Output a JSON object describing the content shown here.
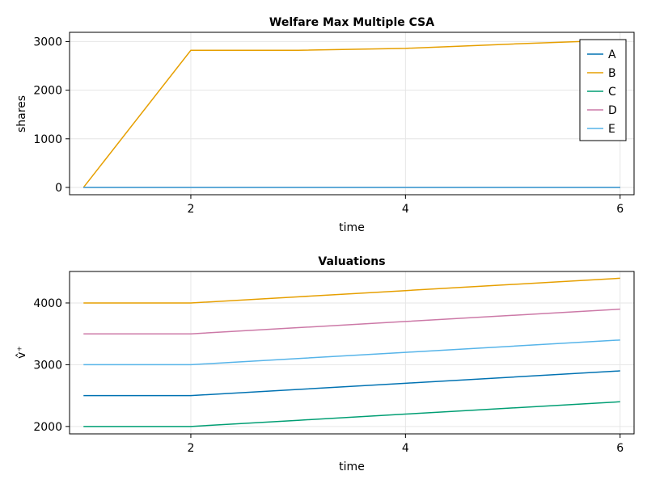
{
  "chart_data": [
    {
      "type": "line",
      "title": "Welfare Max Multiple CSA",
      "xlabel": "time",
      "ylabel": "shares",
      "xlim": [
        0.87,
        6.13
      ],
      "ylim": [
        -150,
        3190
      ],
      "xticks": [
        2,
        4,
        6
      ],
      "yticks": [
        0,
        1000,
        2000,
        3000
      ],
      "grid": true,
      "legend": "top-right",
      "x": [
        1,
        2,
        3,
        4,
        5,
        6
      ],
      "series": [
        {
          "name": "A",
          "color": "#0072b2",
          "values": [
            0,
            0,
            0,
            0,
            0,
            0
          ]
        },
        {
          "name": "B",
          "color": "#e69f00",
          "values": [
            0,
            2820,
            2820,
            2860,
            2950,
            3030
          ]
        },
        {
          "name": "C",
          "color": "#009e73",
          "values": [
            0,
            0,
            0,
            0,
            0,
            0
          ]
        },
        {
          "name": "D",
          "color": "#cc79a7",
          "values": [
            0,
            0,
            0,
            0,
            0,
            0
          ]
        },
        {
          "name": "E",
          "color": "#56b4e9",
          "values": [
            0,
            0,
            0,
            0,
            0,
            0
          ]
        }
      ]
    },
    {
      "type": "line",
      "title": "Valuations",
      "xlabel": "time",
      "ylabel": "v̂⁺",
      "xlim": [
        0.87,
        6.13
      ],
      "ylim": [
        1880,
        4510
      ],
      "xticks": [
        2,
        4,
        6
      ],
      "yticks": [
        2000,
        3000,
        4000
      ],
      "grid": true,
      "x": [
        1,
        2,
        3,
        4,
        5,
        6
      ],
      "series": [
        {
          "color": "#0072b2",
          "values": [
            2500,
            2500,
            2600,
            2700,
            2800,
            2900
          ]
        },
        {
          "color": "#e69f00",
          "values": [
            4000,
            4000,
            4100,
            4200,
            4300,
            4400
          ]
        },
        {
          "color": "#009e73",
          "values": [
            2000,
            2000,
            2100,
            2200,
            2300,
            2400
          ]
        },
        {
          "color": "#cc79a7",
          "values": [
            3500,
            3500,
            3600,
            3700,
            3800,
            3900
          ]
        },
        {
          "color": "#56b4e9",
          "values": [
            3000,
            3000,
            3100,
            3200,
            3300,
            3400
          ]
        }
      ]
    }
  ]
}
